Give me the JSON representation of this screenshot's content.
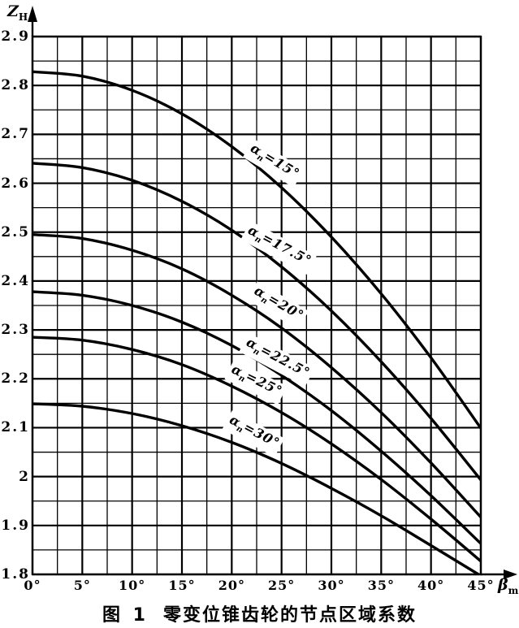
{
  "figure": {
    "y_axis": {
      "sym": "Z",
      "sub": "H"
    },
    "x_axis": {
      "sym": "β",
      "sub": "m"
    },
    "caption": {
      "fig_label": "图 1",
      "title": "零变位锥齿轮的节点区域系数"
    }
  },
  "chart_data": {
    "type": "line",
    "title": "零变位锥齿轮的节点区域系数",
    "xlabel": "βm",
    "ylabel": "ZH",
    "xlim": [
      0,
      45
    ],
    "ylim": [
      1.8,
      2.9
    ],
    "grid": "on, minor x step 2.5°, minor y step 0.05",
    "legend_position": "inline rotated labels on curves",
    "x_ticks": [
      0,
      5,
      10,
      15,
      20,
      25,
      30,
      35,
      40,
      45
    ],
    "x_tick_labels": [
      "0°",
      "5°",
      "10°",
      "15°",
      "20°",
      "25°",
      "30°",
      "35°",
      "40°",
      "45°"
    ],
    "y_ticks": [
      2.9,
      2.8,
      2.7,
      2.6,
      2.5,
      2.4,
      2.3,
      2.2,
      2.1,
      2.0,
      1.9,
      1.8
    ],
    "y_tick_labels": [
      "2.9",
      "2.8",
      "2.7",
      "2.6",
      "2.5",
      "2.4",
      "2.3",
      "2.2",
      "2.1",
      "2",
      "1.9",
      "1.8"
    ],
    "x": [
      0,
      5,
      10,
      15,
      20,
      25,
      30,
      35,
      40,
      45
    ],
    "series": [
      {
        "id": "an-15",
        "name": "αn=15°",
        "label": {
          "sym": "α",
          "sub": "n",
          "eq": "=15°"
        },
        "values": [
          2.828,
          2.819,
          2.79,
          2.742,
          2.675,
          2.591,
          2.49,
          2.374,
          2.243,
          2.099
        ],
        "label_pos": {
          "x": 24.2,
          "z": 2.64,
          "angle": 31
        }
      },
      {
        "id": "an-17.5",
        "name": "αn=17.5°",
        "label": {
          "sym": "α",
          "sub": "n",
          "eq": "=17.5°"
        },
        "values": [
          2.641,
          2.632,
          2.606,
          2.563,
          2.504,
          2.429,
          2.339,
          2.235,
          2.119,
          1.993
        ],
        "label_pos": {
          "x": 24.7,
          "z": 2.468,
          "angle": 28
        }
      },
      {
        "id": "an-20",
        "name": "αn=20°",
        "label": {
          "sym": "α",
          "sub": "n",
          "eq": "=20°"
        },
        "values": [
          2.495,
          2.487,
          2.463,
          2.425,
          2.371,
          2.304,
          2.223,
          2.131,
          2.028,
          1.917
        ],
        "label_pos": {
          "x": 24.6,
          "z": 2.35,
          "angle": 30
        }
      },
      {
        "id": "an-22.5",
        "name": "αn=22.5°",
        "label": {
          "sym": "α",
          "sub": "n",
          "eq": "=22.5°"
        },
        "values": [
          2.378,
          2.371,
          2.35,
          2.316,
          2.268,
          2.207,
          2.135,
          2.052,
          1.961,
          1.863
        ],
        "label_pos": {
          "x": 24.5,
          "z": 2.238,
          "angle": 28
        }
      },
      {
        "id": "an-25",
        "name": "αn=25°",
        "label": {
          "sym": "α",
          "sub": "n",
          "eq": "=25°"
        },
        "values": [
          2.285,
          2.279,
          2.26,
          2.229,
          2.185,
          2.131,
          2.067,
          1.994,
          1.913,
          1.827
        ],
        "label_pos": {
          "x": 22.4,
          "z": 2.192,
          "angle": 26
        }
      },
      {
        "id": "an-30",
        "name": "αn=30°",
        "label": {
          "sym": "α",
          "sub": "n",
          "eq": "=30°"
        },
        "values": [
          2.149,
          2.144,
          2.129,
          2.104,
          2.07,
          2.027,
          1.976,
          1.92,
          1.859,
          1.797
        ],
        "label_pos": {
          "x": 22.2,
          "z": 2.088,
          "angle": 28
        }
      }
    ],
    "colors": {
      "ink": "#000000",
      "paper": "#ffffff"
    }
  }
}
